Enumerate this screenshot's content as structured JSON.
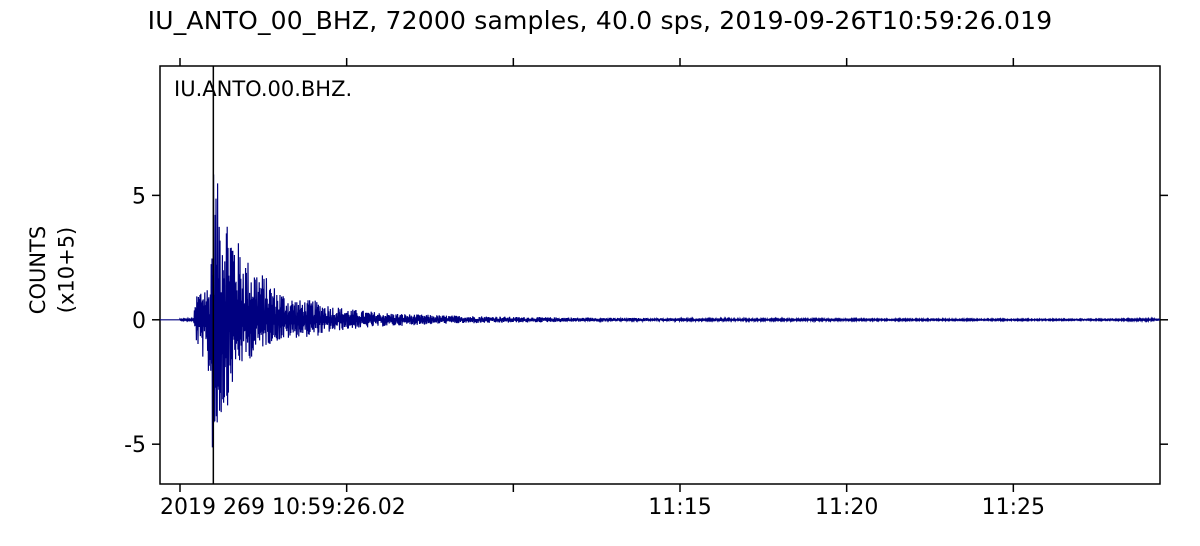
{
  "chart_data": {
    "type": "line",
    "title": "IU_ANTO_00_BHZ, 72000 samples, 40.0 sps, 2019-09-26T10:59:26.019",
    "trace_label": "IU.ANTO.00.BHZ.",
    "ylabel_line1": "COUNTS",
    "ylabel_line2": "(x10+5)",
    "xlabel": "",
    "series_color": "#000080",
    "frame_color": "#000000",
    "grid": false,
    "ylim": [
      -6.6,
      10.2
    ],
    "yticks": [
      -5,
      0,
      5
    ],
    "ytick_labels": [
      "-5",
      "0",
      "5"
    ],
    "xlim_minutes": [
      -0.6,
      29.4
    ],
    "xticks_minutes": [
      0,
      5,
      10,
      15,
      20,
      25
    ],
    "xtick_labels": [
      "2019 269 10:59:26.02",
      "",
      "",
      "11:15",
      "11:20",
      "11:25"
    ],
    "marker_line_minutes": 1.0,
    "envelope": {
      "x_minutes": [
        0.0,
        0.4,
        0.5,
        0.7,
        0.9,
        1.0,
        1.2,
        1.4,
        1.7,
        2.0,
        2.4,
        2.8,
        3.2,
        3.6,
        4.0,
        4.5,
        5.0,
        6.0,
        7.0,
        8.0,
        10.0,
        12.0,
        14.0,
        16.0,
        18.0,
        20.0,
        22.0,
        24.0,
        26.0,
        28.0,
        29.4
      ],
      "pos": [
        0.02,
        0.05,
        1.1,
        1.6,
        1.3,
        6.4,
        5.0,
        4.6,
        3.3,
        2.5,
        2.0,
        1.4,
        1.0,
        0.8,
        0.8,
        0.6,
        0.45,
        0.3,
        0.22,
        0.18,
        0.12,
        0.09,
        0.07,
        0.05,
        0.04,
        0.035,
        0.03,
        0.03,
        0.025,
        0.025,
        0.05
      ],
      "neg": [
        -0.02,
        -0.05,
        -1.0,
        -1.6,
        -2.6,
        -6.4,
        -4.0,
        -3.6,
        -2.0,
        -1.7,
        -1.2,
        -0.9,
        -0.8,
        -0.7,
        -0.7,
        -0.5,
        -0.4,
        -0.28,
        -0.22,
        -0.16,
        -0.12,
        -0.08,
        -0.06,
        -0.05,
        -0.04,
        -0.035,
        -0.03,
        -0.03,
        -0.025,
        -0.025,
        -0.05
      ]
    }
  }
}
